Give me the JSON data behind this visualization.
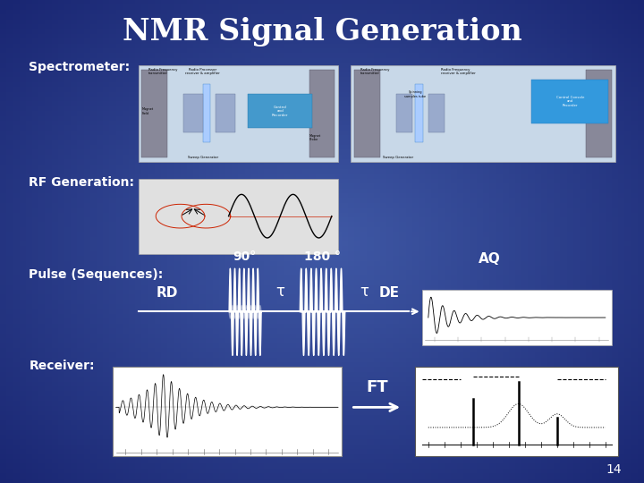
{
  "title": "NMR Signal Generation",
  "title_fontsize": 24,
  "title_color": "white",
  "title_fontweight": "bold",
  "background_color": "#1a3a8c",
  "background_gradient": true,
  "label_color": "white",
  "label_fontsize": 10,
  "label_fontweight": "bold",
  "labels": {
    "spectrometer": "Spectrometer:",
    "rf": "RF Generation:",
    "pulse": "Pulse (Sequences):",
    "receiver": "Receiver:"
  },
  "pulse_labels": {
    "rd": "RD",
    "ninety": "90°",
    "tau1": "τ",
    "oneeighty": "180 °",
    "tau2": "τ",
    "de": "DE",
    "aq": "AQ"
  },
  "ft_label": "FT",
  "page_number": "14",
  "ft_arrow_color": "white",
  "pulse_box_bg": "#ffffff",
  "receiver_fid_bg": "#ffffff",
  "receiver_spec_bg": "#ffffff"
}
